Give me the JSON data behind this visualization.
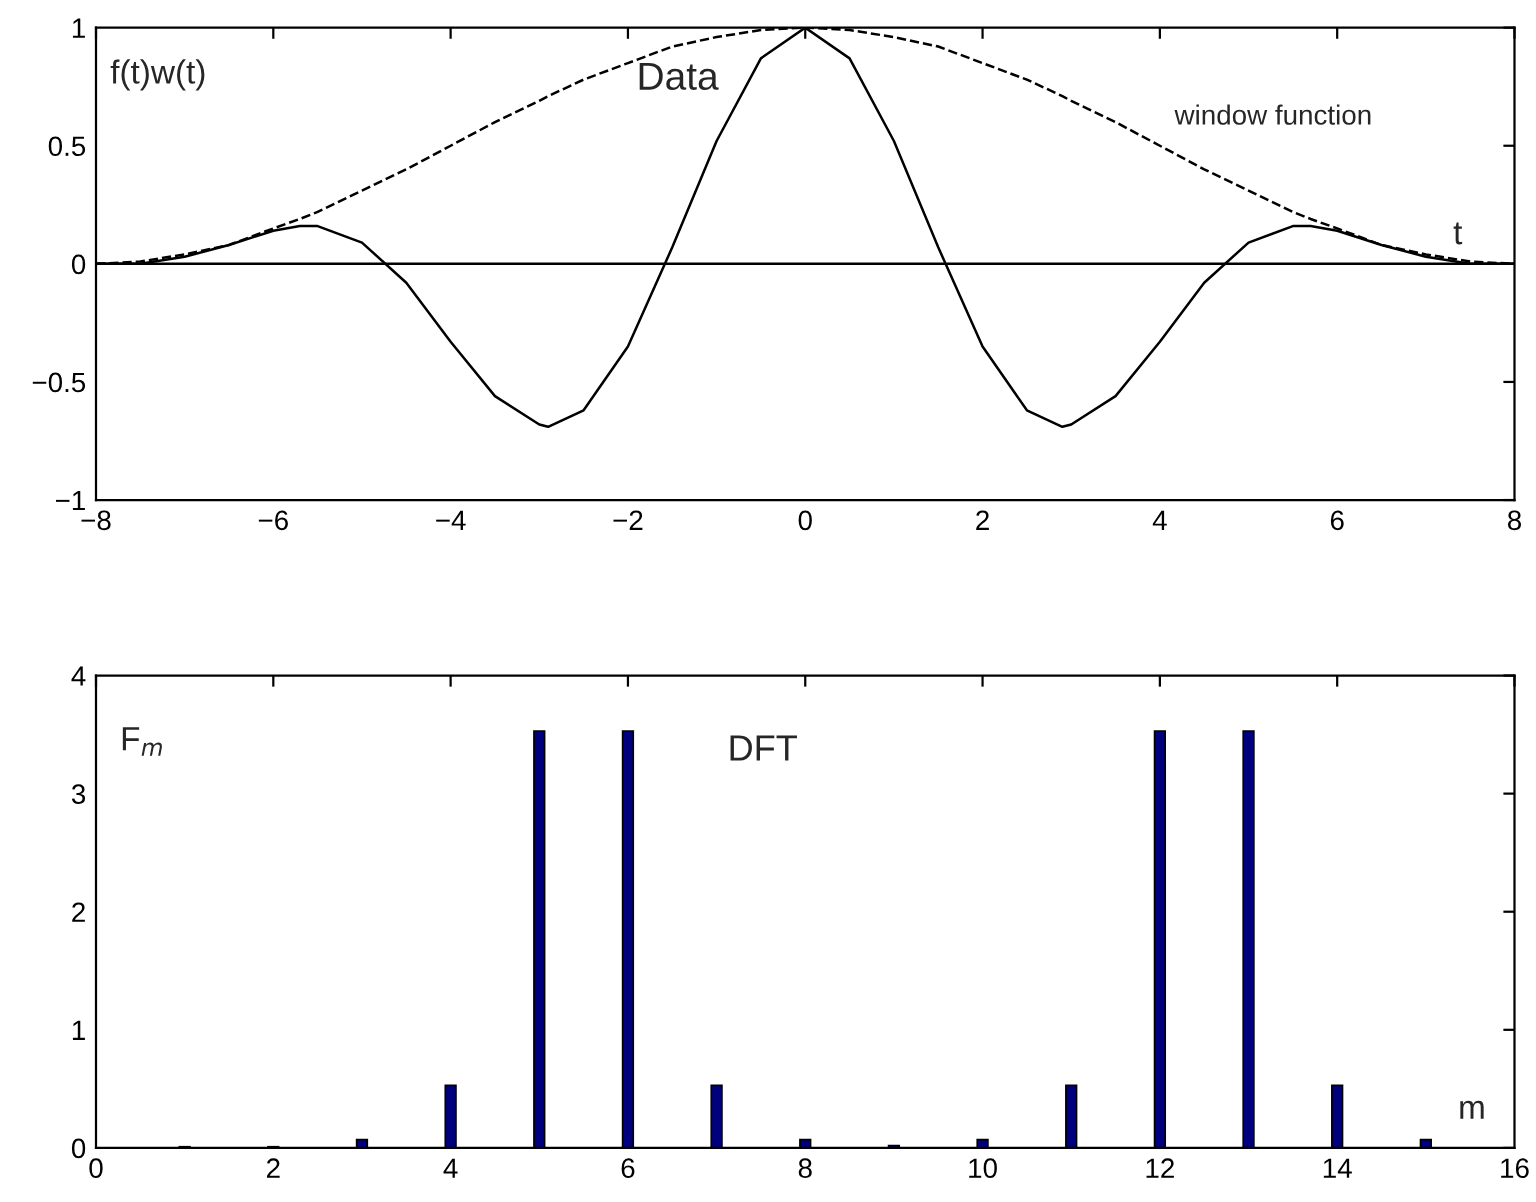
{
  "chart_data": [
    {
      "type": "line",
      "xlabel": "t",
      "ylabel": "f(t)w(t)",
      "xlim": [
        -8,
        8
      ],
      "ylim": [
        -1,
        1
      ],
      "xticks": [
        {
          "value": -8,
          "label": "−8"
        },
        {
          "value": -6,
          "label": "−6"
        },
        {
          "value": -4,
          "label": "−4"
        },
        {
          "value": -2,
          "label": "−2"
        },
        0,
        2,
        4,
        6,
        8
      ],
      "yticks": [
        {
          "value": -1,
          "label": "−1"
        },
        {
          "value": -0.5,
          "label": "−0.5"
        },
        0,
        0.5,
        1
      ],
      "grid": false,
      "x": [
        -8,
        -7.5,
        -7,
        -6.5,
        -6,
        -5.7,
        -5.5,
        -5,
        -4.5,
        -4,
        -3.5,
        -3,
        -2.9,
        -2.5,
        -2,
        -1.5,
        -1,
        -0.5,
        0,
        0.5,
        1,
        1.5,
        2,
        2.5,
        2.9,
        3,
        3.5,
        4,
        4.5,
        5,
        5.5,
        5.7,
        6,
        6.5,
        7,
        7.5,
        8
      ],
      "series": [
        {
          "name": "Data",
          "color": "#000000",
          "line_style": "solid",
          "values": [
            0,
            0,
            0.03,
            0.08,
            0.14,
            0.16,
            0.16,
            0.09,
            -0.08,
            -0.33,
            -0.56,
            -0.68,
            -0.69,
            -0.62,
            -0.35,
            0.07,
            0.52,
            0.87,
            1,
            0.87,
            0.52,
            0.07,
            -0.35,
            -0.62,
            -0.69,
            -0.68,
            -0.56,
            -0.33,
            -0.08,
            0.09,
            0.16,
            0.16,
            0.14,
            0.08,
            0.03,
            0,
            0
          ]
        },
        {
          "name": "window function",
          "color": "#000000",
          "line_style": "dashed",
          "values": [
            0,
            0.01,
            0.04,
            0.08,
            0.15,
            0.19,
            0.22,
            0.31,
            0.4,
            0.5,
            0.6,
            0.69,
            0.71,
            0.78,
            0.85,
            0.92,
            0.96,
            0.99,
            1,
            0.99,
            0.96,
            0.92,
            0.85,
            0.78,
            0.71,
            0.69,
            0.6,
            0.5,
            0.4,
            0.31,
            0.22,
            0.19,
            0.15,
            0.08,
            0.04,
            0.01,
            0
          ]
        }
      ],
      "ref_lines": [
        {
          "axis": "y",
          "value": 0,
          "color": "#000000",
          "line_style": "solid"
        }
      ]
    },
    {
      "type": "bar",
      "title": "DFT",
      "xlabel": "m",
      "ylabel": "F$_{m}$",
      "xlim": [
        0,
        16
      ],
      "ylim": [
        0,
        4
      ],
      "xticks": [
        0,
        2,
        4,
        6,
        8,
        10,
        12,
        14,
        16
      ],
      "yticks": [
        0,
        1,
        2,
        3,
        4
      ],
      "grid": false,
      "legend": false,
      "x": [
        1,
        2,
        3,
        4,
        5,
        6,
        7,
        8,
        9,
        10,
        11,
        12,
        13,
        14,
        15
      ],
      "series": [
        {
          "color": "#00007f",
          "values": [
            0.01,
            0.01,
            0.07,
            0.53,
            3.53,
            3.53,
            0.53,
            0.07,
            0.02,
            0.07,
            0.53,
            3.53,
            3.53,
            0.53,
            0.07
          ]
        }
      ]
    }
  ]
}
